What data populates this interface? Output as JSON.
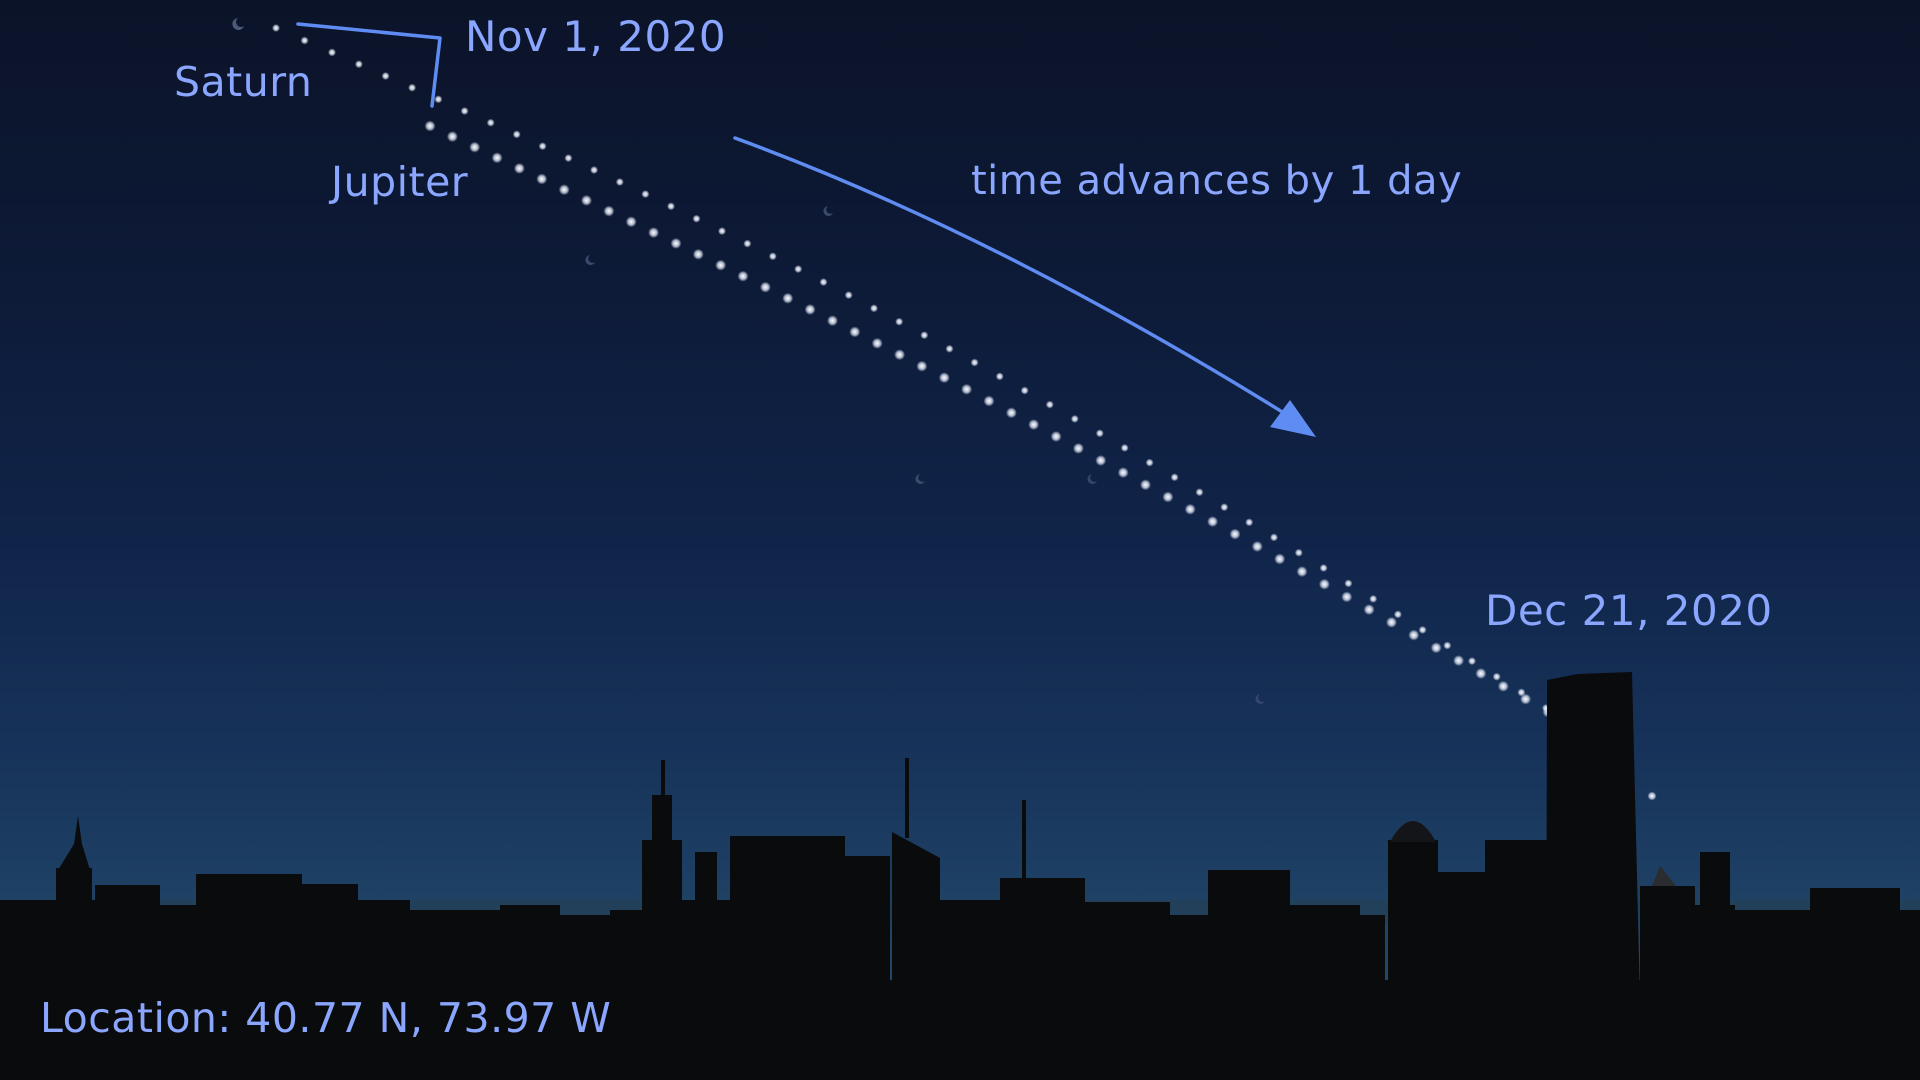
{
  "labels": {
    "saturn": "Saturn",
    "jupiter": "Jupiter",
    "start_date": "Nov 1, 2020",
    "end_date": "Dec 21, 2020",
    "time_note": "time advances by 1 day",
    "location": "Location: 40.77 N, 73.97 W"
  },
  "colors": {
    "annotation": "#8aa6ff",
    "arrow": "#5f8cf2",
    "planet_dot": "#f4f4f4",
    "skyline": "#0a0b0d"
  },
  "planet_tracks": {
    "days_plotted": 51
  }
}
